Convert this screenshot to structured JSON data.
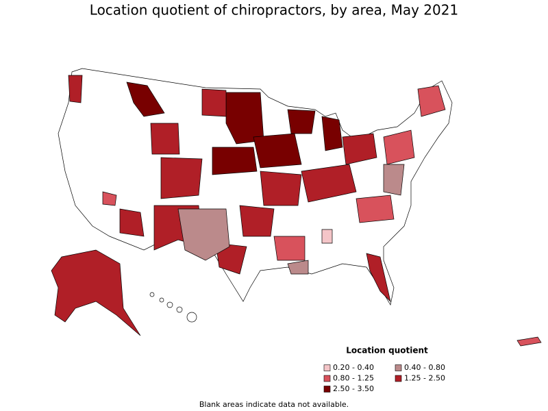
{
  "title": "Location quotient of chiropractors, by area, May 2021",
  "legend": {
    "title": "Location quotient",
    "items": [
      {
        "label": "0.20 - 0.40",
        "color": "#f4c5c8"
      },
      {
        "label": "0.40 - 0.80",
        "color": "#bb8a8b"
      },
      {
        "label": "0.80 - 1.25",
        "color": "#d8525c"
      },
      {
        "label": "1.25 - 2.50",
        "color": "#b01f27"
      },
      {
        "label": "2.50 - 3.50",
        "color": "#780000"
      }
    ]
  },
  "note": "Blank areas indicate data not available."
}
